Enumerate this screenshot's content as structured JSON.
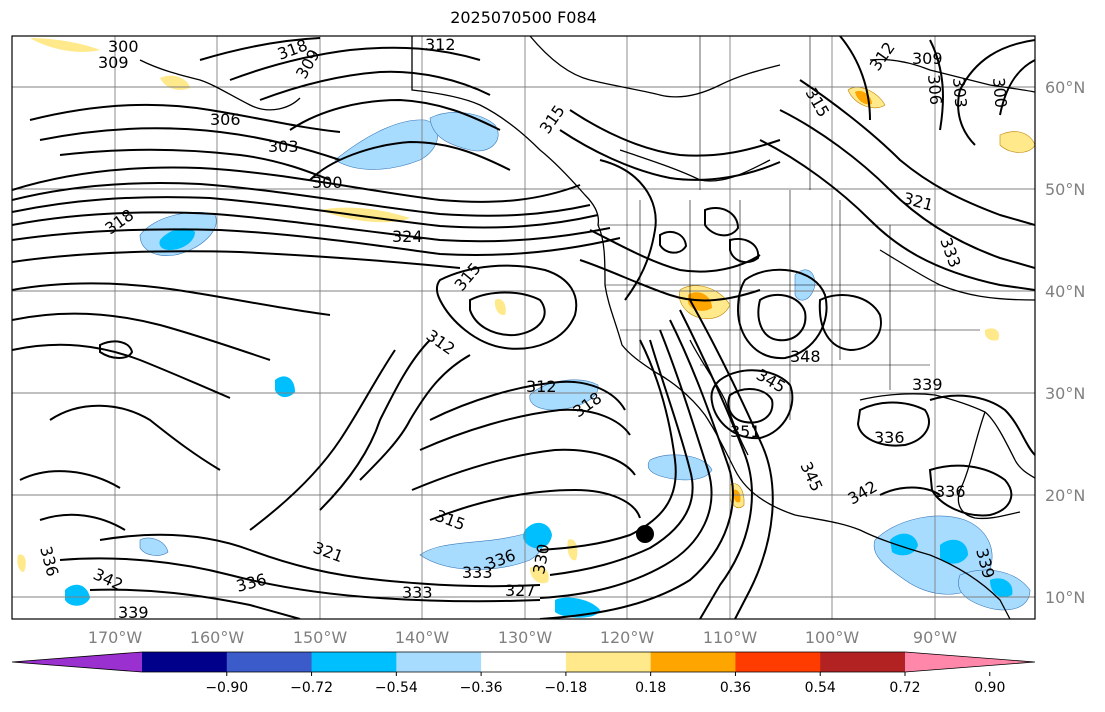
{
  "title": "2025070500 F084",
  "lon_labels": [
    "170°W",
    "160°W",
    "150°W",
    "140°W",
    "130°W",
    "120°W",
    "110°W",
    "100°W",
    "90°W"
  ],
  "lat_labels": [
    "60°N",
    "50°N",
    "40°N",
    "30°N",
    "20°N",
    "10°N"
  ],
  "colorbar": {
    "colors": [
      "#9b30d0",
      "#00008b",
      "#3a5bc9",
      "#00bfff",
      "#a8dcff",
      "#ffffff",
      "#ffe98a",
      "#ffa500",
      "#ff3c00",
      "#b22222",
      "#ff88aa"
    ],
    "ticks": [
      "−0.90",
      "−0.72",
      "−0.54",
      "−0.36",
      "−0.18",
      "0.18",
      "0.36",
      "0.54",
      "0.72",
      "0.90"
    ]
  },
  "contour_labels": [
    "300",
    "303",
    "306",
    "309",
    "312",
    "315",
    "318",
    "321",
    "324",
    "327",
    "330",
    "333",
    "336",
    "339",
    "342",
    "345",
    "348",
    "351"
  ],
  "marker": "storm-center-dot"
}
